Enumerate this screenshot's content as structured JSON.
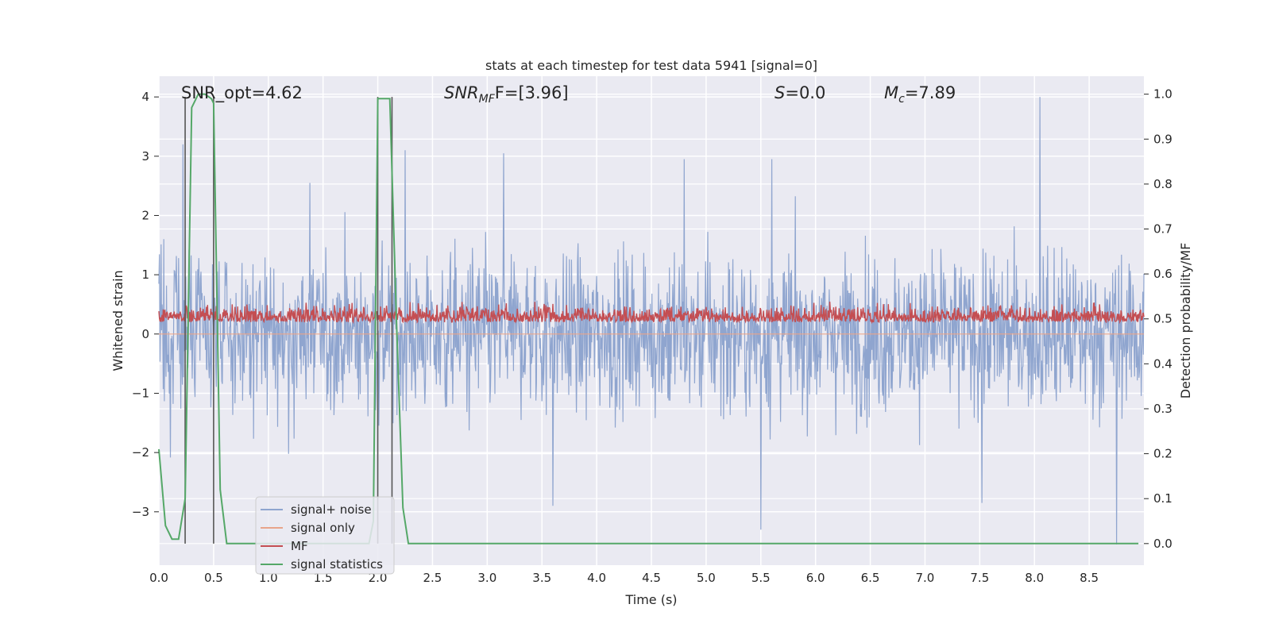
{
  "chart_data": {
    "type": "line",
    "title": "stats at each timestep for test data 5941 [signal=0]",
    "xlabel": "Time (s)",
    "ylabel": "Whitened strain",
    "ylabel_right": "Detection probability/MF",
    "xlim": [
      0.0,
      9.0
    ],
    "ylim": [
      -3.9,
      4.35
    ],
    "ylim_right": [
      -0.048,
      1.04
    ],
    "x_ticks": [
      "0.0",
      "0.5",
      "1.0",
      "1.5",
      "2.0",
      "2.5",
      "3.0",
      "3.5",
      "4.0",
      "4.5",
      "5.0",
      "5.5",
      "6.0",
      "6.5",
      "7.0",
      "7.5",
      "8.0",
      "8.5"
    ],
    "y_ticks": [
      "4",
      "3",
      "2",
      "1",
      "0",
      "−1",
      "−2",
      "−3"
    ],
    "y_ticks_right": [
      "1.0",
      "0.9",
      "0.8",
      "0.7",
      "0.6",
      "0.5",
      "0.4",
      "0.3",
      "0.2",
      "0.1",
      "0.0"
    ],
    "grid": true,
    "legend_position": "lower-left",
    "annotations": {
      "snr_opt": "SNR_opt=4.62",
      "snr_mf_main": "SNR",
      "snr_mf_sub": "MF",
      "snr_mf_value": "F=[3.96]",
      "s_sym": "S",
      "s_value": "=0.0",
      "mc_sym": "M",
      "mc_sub": "c",
      "mc_value": "=7.89"
    },
    "vertical_markers_s": [
      0.24,
      0.5,
      2.0,
      2.13
    ],
    "series": [
      {
        "name": "signal+ noise",
        "color": "#8fa5cf",
        "axis": "left",
        "sample_rate_hz": 200,
        "envelope": {
          "mean": 0.0,
          "typical_upper": 1.4,
          "typical_lower": -1.4,
          "max": 4.0,
          "min": -3.6
        },
        "peaks": [
          [
            0.22,
            3.2
          ],
          [
            1.38,
            2.55
          ],
          [
            2.25,
            3.1
          ],
          [
            3.15,
            3.05
          ],
          [
            4.8,
            2.95
          ],
          [
            5.6,
            2.95
          ],
          [
            8.05,
            4.0
          ]
        ],
        "troughs": [
          [
            3.6,
            -2.9
          ],
          [
            5.5,
            -3.3
          ],
          [
            7.52,
            -2.85
          ],
          [
            8.75,
            -3.55
          ]
        ]
      },
      {
        "name": "signal only",
        "color": "#e8a48a",
        "axis": "left",
        "values_constant": 0.0
      },
      {
        "name": "MF",
        "color": "#c44e52",
        "axis": "left",
        "sample_rate_hz": 200,
        "envelope": {
          "mean": 0.25,
          "typical_upper": 0.7,
          "typical_lower": 0.0,
          "max": 0.95
        }
      },
      {
        "name": "signal statistics",
        "color": "#55a868",
        "axis": "right",
        "x": [
          0.0,
          0.06,
          0.12,
          0.18,
          0.24,
          0.3,
          0.36,
          0.42,
          0.48,
          0.5,
          0.56,
          0.62,
          0.68,
          0.75,
          1.0,
          1.5,
          1.92,
          1.96,
          2.0,
          2.06,
          2.11,
          2.17,
          2.23,
          2.28,
          2.35,
          3.0,
          4.0,
          5.0,
          6.0,
          7.0,
          8.0,
          8.95
        ],
        "values": [
          0.21,
          0.04,
          0.01,
          0.01,
          0.1,
          0.97,
          1.0,
          1.0,
          0.99,
          0.98,
          0.12,
          0.0,
          0.0,
          0.0,
          0.0,
          0.0,
          0.0,
          0.05,
          0.99,
          0.99,
          0.99,
          0.5,
          0.08,
          0.0,
          0.0,
          0.0,
          0.0,
          0.0,
          0.0,
          0.0,
          0.0,
          0.0
        ]
      }
    ]
  }
}
